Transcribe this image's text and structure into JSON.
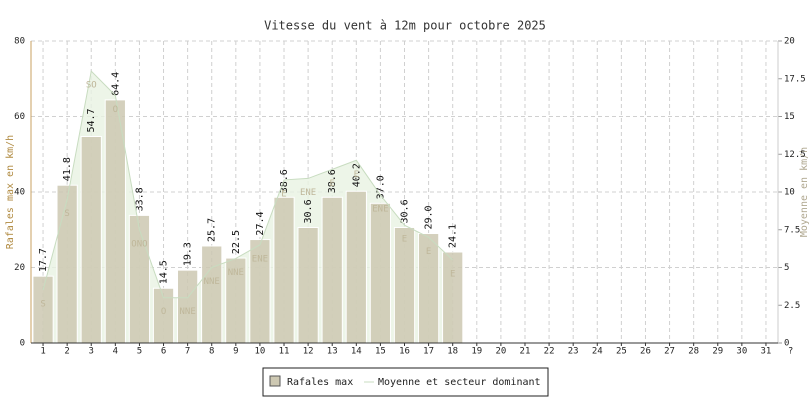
{
  "chart_data": {
    "type": "bar",
    "title": "Vitesse du vent à 12m pour octobre 2025",
    "y_label": "Rafales max en km/h",
    "y2_label": "Moyenne en km/h",
    "categories": [
      "1",
      "2",
      "3",
      "4",
      "5",
      "6",
      "7",
      "8",
      "9",
      "10",
      "11",
      "12",
      "13",
      "14",
      "15",
      "16",
      "17",
      "18",
      "19",
      "20",
      "21",
      "22",
      "23",
      "24",
      "25",
      "26",
      "27",
      "28",
      "29",
      "30",
      "31",
      "?"
    ],
    "ylim": [
      0,
      80
    ],
    "yticks": [
      0,
      20,
      40,
      60,
      80
    ],
    "y2lim": [
      0,
      20
    ],
    "y2ticks": [
      0,
      2.5,
      5,
      7.5,
      10,
      12.5,
      15,
      17.5,
      20
    ],
    "grid": true,
    "series": [
      {
        "name": "Rafales max",
        "color": "#cdc8b2",
        "values": [
          17.7,
          41.8,
          54.7,
          64.4,
          33.8,
          14.5,
          19.3,
          25.7,
          22.5,
          27.4,
          38.6,
          30.6,
          38.6,
          40.2,
          37,
          30.6,
          29,
          24.1,
          null,
          null,
          null,
          null,
          null,
          null,
          null,
          null,
          null,
          null,
          null,
          null,
          null,
          null
        ],
        "value_labels": [
          "17.7",
          "41.8",
          "54.7",
          "64.4",
          "33.8",
          "14.5",
          "19.3",
          "25.7",
          "22.5",
          "27.4",
          "38.6",
          "30.6",
          "38.6",
          "40.2",
          "37.0",
          "30.6",
          "29.0",
          "24.1",
          null,
          null,
          null,
          null,
          null,
          null,
          null,
          null,
          null,
          null,
          null,
          null,
          null,
          null
        ]
      },
      {
        "name": "Moyenne et secteur dominant",
        "color": "#c8dcc0",
        "axis": "y2",
        "type": "area",
        "values": [
          3.5,
          9.5,
          18,
          16.4,
          7.5,
          3,
          3,
          5,
          5.6,
          6.5,
          10.8,
          10.9,
          11.5,
          12.1,
          9.8,
          7.8,
          7,
          5.5,
          null,
          null,
          null,
          null,
          null,
          null,
          null,
          null,
          null,
          null,
          null,
          null,
          null,
          null
        ],
        "sectors": [
          "S",
          "S",
          "SO",
          "O",
          "ONO",
          "O",
          "NNE",
          "NNE",
          "NNE",
          "ENE",
          "E",
          "ENE",
          "E",
          "E",
          "ENE",
          "E",
          "E",
          "E",
          null,
          null,
          null,
          null,
          null,
          null,
          null,
          null,
          null,
          null,
          null,
          null,
          null,
          null
        ]
      }
    ]
  }
}
